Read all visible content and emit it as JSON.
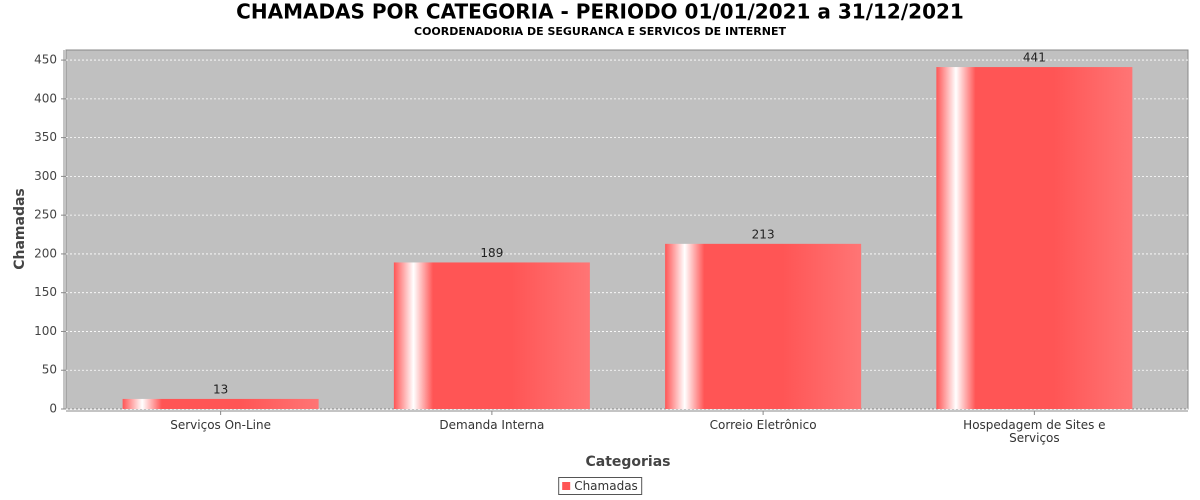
{
  "chart_data": {
    "type": "bar",
    "title": "CHAMADAS POR CATEGORIA - PERIODO 01/01/2021 a 31/12/2021",
    "subtitle": "COORDENADORIA DE SEGURANCA E SERVICOS DE INTERNET",
    "x_label": "Categorias",
    "y_label": "Chamadas",
    "categories": [
      "Serviços On-Line",
      "Demanda Interna",
      "Correio Eletrônico",
      "Hospedagem de Sites e Serviços"
    ],
    "series": [
      {
        "name": "Chamadas",
        "color": "#ff5555",
        "values": [
          13,
          189,
          213,
          441
        ]
      }
    ],
    "ylim": [
      0,
      463
    ],
    "yticks": [
      0,
      50,
      100,
      150,
      200,
      250,
      300,
      350,
      400,
      450
    ],
    "grid": true,
    "legend": "bottom"
  }
}
